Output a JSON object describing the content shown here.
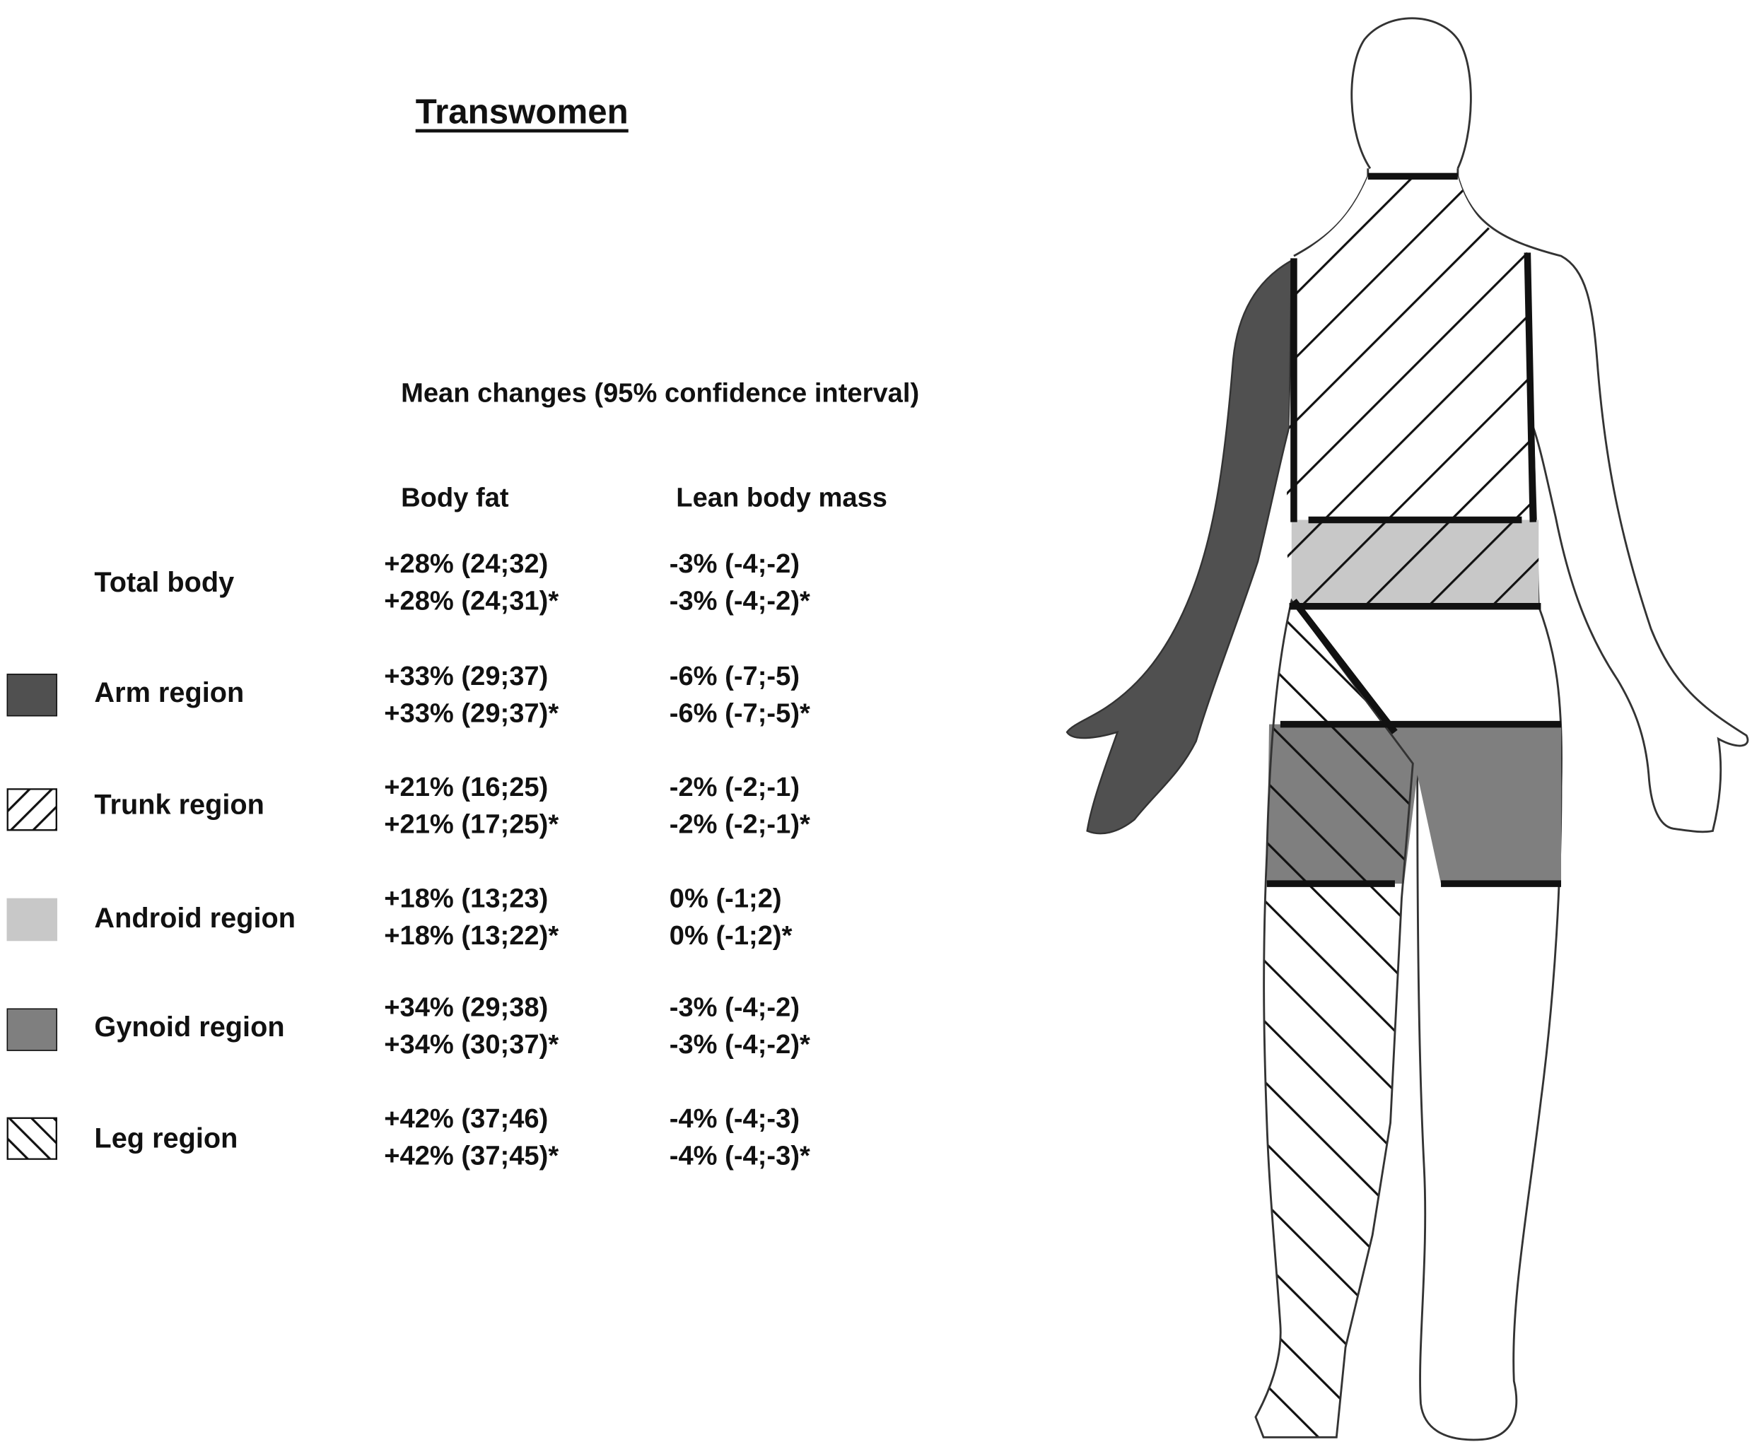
{
  "title": "Transwomen",
  "subtitle": "Mean changes (95% confidence interval)",
  "columns": {
    "body_fat": "Body fat",
    "lean_body_mass": "Lean body mass"
  },
  "colors": {
    "arm": "#505050",
    "android": "#c8c8c8",
    "gynoid": "#7f7f7f",
    "outline": "#111111"
  },
  "rows": [
    {
      "label": "Total body",
      "swatch": "none",
      "body_fat": [
        "+28% (24;32)",
        "+28% (24;31)*"
      ],
      "lean_body_mass": [
        "-3% (-4;-2)",
        "-3% (-4;-2)*"
      ]
    },
    {
      "label": "Arm region",
      "swatch": "solid-dark-grey",
      "body_fat": [
        "+33% (29;37)",
        "+33% (29;37)*"
      ],
      "lean_body_mass": [
        "-6% (-7;-5)",
        "-6% (-7;-5)*"
      ]
    },
    {
      "label": "Trunk region",
      "swatch": "hatch-forward",
      "body_fat": [
        "+21% (16;25)",
        "+21% (17;25)*"
      ],
      "lean_body_mass": [
        "-2% (-2;-1)",
        "-2% (-2;-1)*"
      ]
    },
    {
      "label": "Android region",
      "swatch": "solid-light-grey",
      "body_fat": [
        "+18% (13;23)",
        "+18% (13;22)*"
      ],
      "lean_body_mass": [
        "0% (-1;2)",
        "0% (-1;2)*"
      ]
    },
    {
      "label": "Gynoid region",
      "swatch": "solid-mid-grey",
      "body_fat": [
        "+34% (29;38)",
        "+34% (30;37)*"
      ],
      "lean_body_mass": [
        "-3% (-4;-2)",
        "-3% (-4;-2)*"
      ]
    },
    {
      "label": "Leg region",
      "swatch": "hatch-backward",
      "body_fat": [
        "+42% (37;46)",
        "+42% (37;45)*"
      ],
      "lean_body_mass": [
        "-4% (-4;-3)",
        "-4% (-4;-3)*"
      ]
    }
  ]
}
